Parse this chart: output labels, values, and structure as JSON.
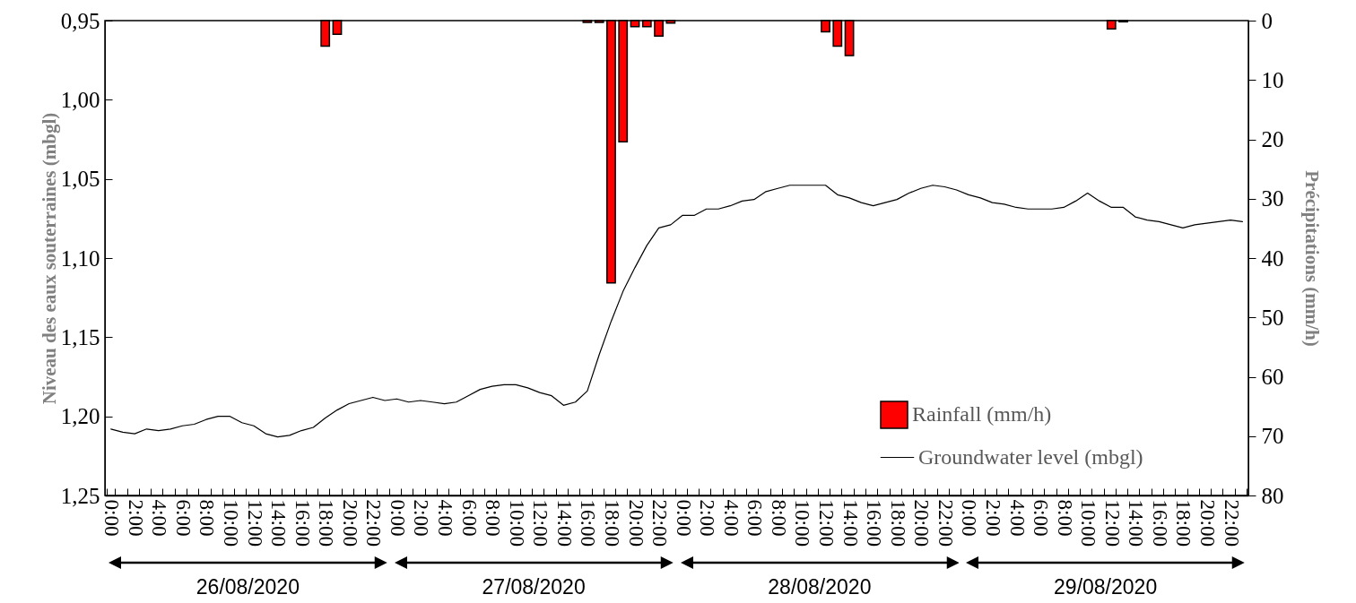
{
  "chart_data": {
    "type": "bar",
    "ylabel": "Niveau des eaux souterraines (mbgl)",
    "y2label": "Précipitations  (mm/h)",
    "categories": [
      "0:00",
      null,
      "2:00",
      null,
      "4:00",
      null,
      "6:00",
      null,
      "8:00",
      null,
      "10:00",
      null,
      "12:00",
      null,
      "14:00",
      null,
      "16:00",
      null,
      "18:00",
      null,
      "20:00",
      null,
      "22:00",
      null,
      "0:00",
      null,
      "2:00",
      null,
      "4:00",
      null,
      "6:00",
      null,
      "8:00",
      null,
      "10:00",
      null,
      "12:00",
      null,
      "14:00",
      null,
      "16:00",
      null,
      "18:00",
      null,
      "20:00",
      null,
      "22:00",
      null,
      "0:00",
      null,
      "2:00",
      null,
      "4:00",
      null,
      "6:00",
      null,
      "8:00",
      null,
      "10:00",
      null,
      "12:00",
      null,
      "14:00",
      null,
      "16:00",
      null,
      "18:00",
      null,
      "20:00",
      null,
      "22:00",
      null,
      "0:00",
      null,
      "2:00",
      null,
      "4:00",
      null,
      "6:00",
      null,
      "8:00",
      null,
      "10:00",
      null,
      "12:00",
      null,
      "14:00",
      null,
      "16:00",
      null,
      "18:00",
      null,
      "20:00",
      null,
      "22:00",
      null
    ],
    "series": [
      {
        "name": "Rainfall (mm/h)",
        "axis": "y2",
        "color": "#ff0000",
        "values": [
          null,
          null,
          null,
          null,
          null,
          null,
          null,
          null,
          null,
          null,
          null,
          null,
          null,
          null,
          null,
          null,
          null,
          null,
          4.3,
          2.3,
          null,
          null,
          null,
          null,
          null,
          null,
          null,
          null,
          null,
          null,
          null,
          null,
          null,
          null,
          null,
          null,
          null,
          null,
          null,
          null,
          0.3,
          0.3,
          44.2,
          20.4,
          1.0,
          1.0,
          2.6,
          0.4,
          null,
          null,
          null,
          null,
          null,
          null,
          null,
          null,
          null,
          null,
          null,
          null,
          1.9,
          4.3,
          5.9,
          null,
          null,
          null,
          null,
          null,
          null,
          null,
          null,
          null,
          null,
          null,
          null,
          null,
          null,
          null,
          null,
          null,
          null,
          null,
          null,
          null,
          1.4,
          0.2,
          null,
          null,
          null,
          null,
          null,
          null,
          null,
          null,
          null,
          null
        ]
      },
      {
        "name": "Groundwater level (mbgl)",
        "type": "line",
        "color": "#000000",
        "values": [
          1.208,
          1.21,
          1.211,
          1.208,
          1.209,
          1.208,
          1.206,
          1.205,
          1.202,
          1.2,
          1.2,
          1.204,
          1.206,
          1.211,
          1.213,
          1.212,
          1.209,
          1.207,
          1.201,
          1.196,
          1.192,
          1.19,
          1.188,
          1.19,
          1.189,
          1.191,
          1.19,
          1.191,
          1.192,
          1.191,
          1.187,
          1.183,
          1.181,
          1.18,
          1.18,
          1.182,
          1.185,
          1.187,
          1.193,
          1.191,
          1.184,
          1.161,
          1.14,
          1.121,
          1.106,
          1.092,
          1.081,
          1.079,
          1.073,
          1.073,
          1.069,
          1.069,
          1.067,
          1.064,
          1.063,
          1.058,
          1.056,
          1.054,
          1.054,
          1.054,
          1.054,
          1.06,
          1.062,
          1.065,
          1.067,
          1.065,
          1.063,
          1.059,
          1.056,
          1.054,
          1.055,
          1.057,
          1.06,
          1.062,
          1.065,
          1.066,
          1.068,
          1.069,
          1.069,
          1.069,
          1.068,
          1.064,
          1.059,
          1.064,
          1.068,
          1.068,
          1.074,
          1.076,
          1.077,
          1.079,
          1.081,
          1.079,
          1.078,
          1.077,
          1.076,
          1.077
        ]
      }
    ],
    "ylim": [
      1.25,
      0.95
    ],
    "yticks": [
      {
        "value": 0.95,
        "label": "0,95"
      },
      {
        "value": 1.0,
        "label": "1,00"
      },
      {
        "value": 1.05,
        "label": "1,05"
      },
      {
        "value": 1.1,
        "label": "1,10"
      },
      {
        "value": 1.15,
        "label": "1,15"
      },
      {
        "value": 1.2,
        "label": "1,20"
      },
      {
        "value": 1.25,
        "label": "1,25"
      }
    ],
    "y2lim": [
      80,
      0
    ],
    "y2ticks": [
      0,
      10,
      20,
      30,
      40,
      50,
      60,
      70,
      80
    ],
    "legend": "bottom right",
    "annotations": [
      "26/08/2020",
      "27/08/2020",
      "28/08/2020",
      "29/08/2020"
    ]
  }
}
